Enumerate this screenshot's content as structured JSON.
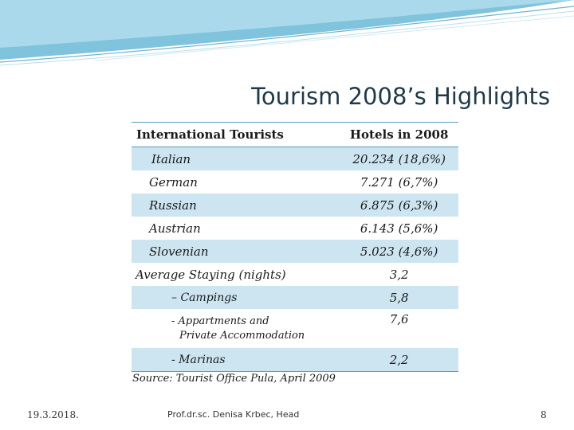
{
  "slide": {
    "title": "Tourism 2008’s Highlights",
    "accent_color": "#5b9bb8",
    "shade_color": "#cce5f0"
  },
  "table": {
    "headers": [
      "International Tourists",
      "Hotels in 2008"
    ],
    "tourists": [
      {
        "label": "Italian",
        "value": "20.234 (18,6%)"
      },
      {
        "label": "German",
        "value": "7.271 (6,7%)"
      },
      {
        "label": "Russian",
        "value": "6.875 (6,3%)"
      },
      {
        "label": "Austrian",
        "value": "6.143 (5,6%)"
      },
      {
        "label": "Slovenian",
        "value": "5.023 (4,6%)"
      }
    ],
    "staying": {
      "label": "Average Staying (nights)",
      "value": "3,2",
      "items": [
        {
          "label": "– Campings",
          "value": "5,8"
        },
        {
          "label_line1": "- Appartments and",
          "label_line2": "Private Accommodation",
          "value": "7,6"
        },
        {
          "label": "- Marinas",
          "value": "2,2"
        }
      ]
    }
  },
  "source": "Source: Tourist Office Pula, April 2009",
  "footer": {
    "date": "19.3.2018.",
    "author": "Prof.dr.sc. Denisa Krbec, Head",
    "page": "8"
  }
}
